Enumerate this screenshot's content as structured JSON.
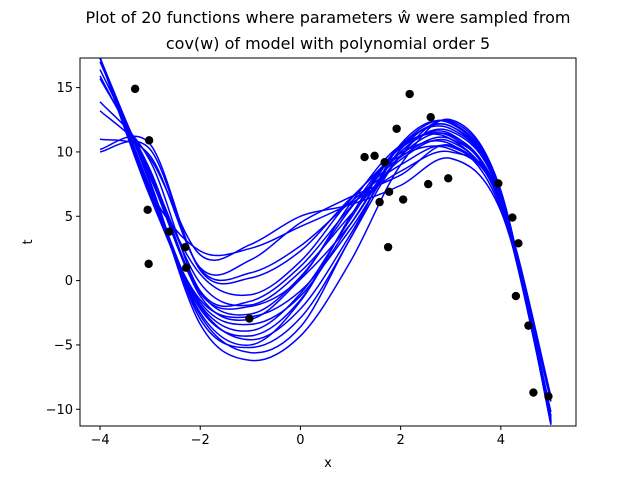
{
  "chart_data": {
    "type": "line",
    "title_line1": "Plot of 20 functions where parameters ŵ were sampled from",
    "title_line2": "cov(w) of model with polynomial order 5",
    "xlabel": "x",
    "ylabel": "t",
    "xlim": [
      -4.4,
      5.5
    ],
    "ylim": [
      -11.3,
      17.3
    ],
    "x_ticks": [
      -4,
      -2,
      0,
      2,
      4
    ],
    "y_ticks": [
      -10,
      -5,
      0,
      5,
      10,
      15
    ],
    "grid": false,
    "legend": "none",
    "line_color": "#0000ff",
    "point_color": "#000000",
    "points": [
      {
        "x": -3.3,
        "y": 14.9
      },
      {
        "x": -3.02,
        "y": 10.9
      },
      {
        "x": -3.05,
        "y": 5.5
      },
      {
        "x": -3.03,
        "y": 1.3
      },
      {
        "x": -2.62,
        "y": 3.8
      },
      {
        "x": -2.3,
        "y": 2.6
      },
      {
        "x": -2.28,
        "y": 1.0
      },
      {
        "x": -1.02,
        "y": -2.95
      },
      {
        "x": 1.28,
        "y": 9.6
      },
      {
        "x": 1.48,
        "y": 9.7
      },
      {
        "x": 1.58,
        "y": 6.1
      },
      {
        "x": 1.68,
        "y": 9.2
      },
      {
        "x": 1.75,
        "y": 2.6
      },
      {
        "x": 1.77,
        "y": 6.9
      },
      {
        "x": 1.92,
        "y": 11.8
      },
      {
        "x": 2.05,
        "y": 6.3
      },
      {
        "x": 2.18,
        "y": 14.5
      },
      {
        "x": 2.55,
        "y": 7.5
      },
      {
        "x": 2.6,
        "y": 12.7
      },
      {
        "x": 2.95,
        "y": 7.95
      },
      {
        "x": 3.95,
        "y": 7.55
      },
      {
        "x": 4.23,
        "y": 4.9
      },
      {
        "x": 4.35,
        "y": 2.9
      },
      {
        "x": 4.3,
        "y": -1.2
      },
      {
        "x": 4.55,
        "y": -3.5
      },
      {
        "x": 4.65,
        "y": -8.7
      },
      {
        "x": 4.95,
        "y": -9.0
      }
    ],
    "series": [
      {
        "x": [
          -4,
          -3,
          -2,
          -1,
          0,
          1,
          2,
          3,
          4,
          5
        ],
        "y": [
          17.3,
          7.0,
          2.3,
          2.5,
          4.2,
          6.0,
          8.5,
          10.0,
          6.5,
          -10.5
        ]
      },
      {
        "x": [
          -4,
          -3,
          -2,
          -1,
          0,
          1,
          2,
          3,
          4,
          5
        ],
        "y": [
          13.2,
          9.5,
          2.0,
          2.8,
          5.0,
          5.9,
          7.4,
          9.5,
          5.4,
          -9.2
        ]
      },
      {
        "x": [
          -4,
          -3,
          -2,
          -1,
          0,
          1,
          2,
          3,
          4,
          5
        ],
        "y": [
          11.0,
          9.7,
          1.0,
          1.6,
          4.5,
          6.5,
          8.2,
          10.5,
          5.6,
          -9.4
        ]
      },
      {
        "x": [
          -4,
          -3,
          -2,
          -1,
          0,
          1,
          2,
          3,
          4,
          5
        ],
        "y": [
          10.0,
          10.2,
          0.9,
          0.6,
          2.7,
          6.1,
          9.0,
          10.4,
          6.1,
          -9.1
        ]
      },
      {
        "x": [
          -4,
          -3,
          -2,
          -1,
          0,
          1,
          2,
          3,
          4,
          5
        ],
        "y": [
          10.2,
          10.6,
          0.8,
          0.2,
          2.3,
          6.4,
          9.7,
          10.2,
          6.3,
          -9.0
        ]
      },
      {
        "x": [
          -4,
          -3,
          -2,
          -1,
          0,
          1,
          2,
          3,
          4,
          5
        ],
        "y": [
          13.9,
          9.3,
          -0.8,
          -1.6,
          1.1,
          5.7,
          9.6,
          11.0,
          6.3,
          -10.8
        ]
      },
      {
        "x": [
          -4,
          -3,
          -2,
          -1,
          0,
          1,
          2,
          3,
          4,
          5
        ],
        "y": [
          16.4,
          8.3,
          -0.9,
          -2.6,
          0.3,
          5.6,
          10.3,
          11.2,
          6.1,
          -10.8
        ]
      },
      {
        "x": [
          -4,
          -3,
          -2,
          -1,
          0,
          1,
          2,
          3,
          4,
          5
        ],
        "y": [
          17.0,
          8.1,
          -1.0,
          -2.0,
          0.2,
          6.0,
          10.5,
          11.0,
          5.8,
          -10.9
        ]
      },
      {
        "x": [
          -4,
          -3,
          -2,
          -1,
          0,
          1,
          2,
          3,
          4,
          5
        ],
        "y": [
          15.7,
          8.6,
          -1.2,
          -3.0,
          0.1,
          4.4,
          10.0,
          11.4,
          5.9,
          -10.8
        ]
      },
      {
        "x": [
          -4,
          -3,
          -2,
          -1,
          0,
          1,
          2,
          3,
          4,
          5
        ],
        "y": [
          17.3,
          6.6,
          -1.9,
          -3.9,
          -1.0,
          4.8,
          10.4,
          12.0,
          6.7,
          -11.0
        ]
      },
      {
        "x": [
          -4,
          -3,
          -2,
          -1,
          0,
          1,
          2,
          3,
          4,
          5
        ],
        "y": [
          17.3,
          7.0,
          -2.2,
          -4.3,
          -1.5,
          5.0,
          10.5,
          11.8,
          6.6,
          -11.1
        ]
      },
      {
        "x": [
          -4,
          -3,
          -2,
          -1,
          0,
          1,
          2,
          3,
          4,
          5
        ],
        "y": [
          17.3,
          7.1,
          -2.5,
          -5.0,
          -1.6,
          5.0,
          10.5,
          12.3,
          6.8,
          -11.1
        ]
      },
      {
        "x": [
          -4,
          -3,
          -2,
          -1,
          0,
          1,
          2,
          3,
          4,
          5
        ],
        "y": [
          17.3,
          7.7,
          -3.0,
          -5.2,
          -2.9,
          3.3,
          10.6,
          12.2,
          6.7,
          -11.1
        ]
      },
      {
        "x": [
          -4,
          -3,
          -2,
          -1,
          0,
          1,
          2,
          3,
          4,
          5
        ],
        "y": [
          17.3,
          7.0,
          -2.7,
          -5.6,
          -3.6,
          3.3,
          9.7,
          12.4,
          6.9,
          -11.2
        ]
      },
      {
        "x": [
          -4,
          -3,
          -2,
          -1,
          0,
          1,
          2,
          3,
          4,
          5
        ],
        "y": [
          17.3,
          7.5,
          -3.4,
          -6.2,
          -4.3,
          1.5,
          9.0,
          12.5,
          7.0,
          -11.2
        ]
      },
      {
        "x": [
          -4,
          -3,
          -2,
          -1,
          0,
          1,
          2,
          3,
          4,
          5
        ],
        "y": [
          17.3,
          6.5,
          -1.5,
          -2.8,
          -0.8,
          4.0,
          9.7,
          11.3,
          6.2,
          -10.9
        ]
      },
      {
        "x": [
          -4,
          -3,
          -2,
          -1,
          0,
          1,
          2,
          3,
          4,
          5
        ],
        "y": [
          17.3,
          8.0,
          0.5,
          -1.1,
          1.5,
          6.3,
          9.9,
          10.6,
          6.0,
          -10.2
        ]
      },
      {
        "x": [
          -4,
          -3,
          -2,
          -1,
          0,
          1,
          2,
          3,
          4,
          5
        ],
        "y": [
          15.9,
          8.4,
          -0.2,
          -1.9,
          0.7,
          5.1,
          9.4,
          10.8,
          5.9,
          -10.6
        ]
      },
      {
        "x": [
          -4,
          -3,
          -2,
          -1,
          0,
          1,
          2,
          3,
          4,
          5
        ],
        "y": [
          17.3,
          7.2,
          -2.0,
          -4.6,
          -2.2,
          3.6,
          10.2,
          12.0,
          6.4,
          -11.0
        ]
      },
      {
        "x": [
          -4,
          -3,
          -2,
          -1,
          0,
          1,
          2,
          3,
          4,
          5
        ],
        "y": [
          17.3,
          6.8,
          -1.7,
          -3.4,
          -1.2,
          4.4,
          10.0,
          11.6,
          6.5,
          -11.0
        ]
      }
    ]
  }
}
